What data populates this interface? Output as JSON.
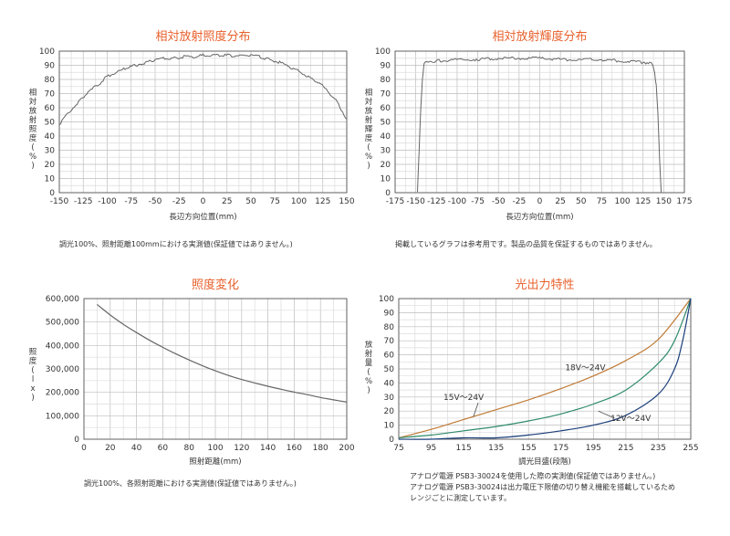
{
  "chart_data": [
    {
      "type": "line",
      "title": "相対放射照度分布",
      "xlabel": "長辺方向位置(mm)",
      "ylabel": "相対放射照度(%)",
      "xlim": [
        -150,
        150
      ],
      "ylim": [
        0,
        100
      ],
      "xticks": [
        "-150",
        "-125",
        "-100",
        "-75",
        "-50",
        "-25",
        "0",
        "25",
        "50",
        "75",
        "100",
        "125",
        "150"
      ],
      "yticks": [
        "0",
        "10",
        "20",
        "30",
        "40",
        "50",
        "60",
        "70",
        "80",
        "90",
        "100"
      ],
      "grid": true,
      "series": [
        {
          "color": "#666666",
          "x": [
            -150,
            -140,
            -130,
            -120,
            -110,
            -100,
            -90,
            -80,
            -70,
            -60,
            -50,
            -40,
            -30,
            -20,
            -10,
            0,
            10,
            20,
            30,
            40,
            50,
            60,
            70,
            80,
            90,
            100,
            110,
            120,
            130,
            140,
            150
          ],
          "y": [
            48,
            57,
            64,
            71,
            76,
            82,
            85,
            88,
            90,
            92,
            94,
            95,
            95,
            96,
            96,
            97,
            97,
            97,
            97,
            97,
            97,
            96,
            94,
            92,
            89,
            86,
            82,
            78,
            72,
            64,
            52
          ]
        }
      ],
      "note": "調光100%、照射距離100mmにおける実測値(保証値ではありません。)"
    },
    {
      "type": "line",
      "title": "相対放射輝度分布",
      "xlabel": "長辺方向位置(mm)",
      "ylabel": "相対放射輝度(%)",
      "xlim": [
        -175,
        175
      ],
      "ylim": [
        0,
        100
      ],
      "xticks": [
        "-175",
        "-150",
        "-125",
        "-100",
        "-75",
        "-50",
        "-25",
        "0",
        "25",
        "50",
        "75",
        "100",
        "125",
        "150",
        "175"
      ],
      "yticks": [
        "0",
        "10",
        "20",
        "30",
        "40",
        "50",
        "60",
        "70",
        "80",
        "90",
        "100"
      ],
      "grid": true,
      "series": [
        {
          "color": "#666666",
          "x": [
            -148,
            -146,
            -144,
            -142,
            -140,
            -135,
            -125,
            -100,
            -75,
            -50,
            -25,
            0,
            25,
            50,
            75,
            100,
            125,
            133,
            137,
            139,
            141,
            143,
            145,
            147
          ],
          "y": [
            0,
            30,
            60,
            80,
            91,
            93,
            93,
            94,
            94,
            95,
            95,
            95,
            94,
            94,
            94,
            93,
            92,
            92,
            90,
            85,
            75,
            55,
            25,
            0
          ]
        }
      ],
      "note": "掲載しているグラフは参考用です。製品の品質を保証するものではありません。"
    },
    {
      "type": "line",
      "title": "照度変化",
      "xlabel": "照射距離(mm)",
      "ylabel": "照度(lx)",
      "xlim": [
        0,
        200
      ],
      "ylim": [
        0,
        600000
      ],
      "xticks": [
        "0",
        "20",
        "40",
        "60",
        "80",
        "100",
        "120",
        "140",
        "160",
        "180",
        "200"
      ],
      "yticks": [
        "0",
        "100,000",
        "200,000",
        "300,000",
        "400,000",
        "500,000",
        "600,000"
      ],
      "grid": true,
      "series": [
        {
          "color": "#666666",
          "x": [
            10,
            20,
            30,
            40,
            50,
            60,
            70,
            80,
            90,
            100,
            110,
            120,
            130,
            140,
            150,
            160,
            170,
            180,
            190,
            200
          ],
          "y": [
            575000,
            530000,
            490000,
            455000,
            422000,
            392000,
            364000,
            338000,
            314000,
            292000,
            272000,
            255000,
            240000,
            226000,
            213000,
            201000,
            190000,
            178000,
            168000,
            158000
          ]
        }
      ],
      "note": "調光100%、各照射距離における実測値(保証値ではありません。)"
    },
    {
      "type": "line",
      "title": "光出力特性",
      "xlabel": "調光目盛(段階)",
      "ylabel": "放射量(%)",
      "xlim": [
        75,
        255
      ],
      "ylim": [
        0,
        100
      ],
      "xticks": [
        "75",
        "95",
        "115",
        "135",
        "155",
        "175",
        "195",
        "215",
        "235",
        "255"
      ],
      "yticks": [
        "0",
        "10",
        "20",
        "30",
        "40",
        "50",
        "60",
        "70",
        "80",
        "90",
        "100"
      ],
      "grid": true,
      "series": [
        {
          "name": "18V〜24V",
          "color": "#c07a35",
          "x": [
            75,
            95,
            115,
            135,
            155,
            175,
            195,
            215,
            235,
            255
          ],
          "y": [
            1,
            7,
            14,
            21,
            28,
            36,
            45,
            56,
            71,
            100
          ]
        },
        {
          "name": "15V〜24V",
          "color": "#2e8b6a",
          "x": [
            75,
            95,
            115,
            135,
            155,
            175,
            195,
            215,
            235,
            245,
            255
          ],
          "y": [
            1,
            3,
            6,
            9,
            13,
            18,
            25,
            35,
            54,
            70,
            100
          ]
        },
        {
          "name": "12V〜24V",
          "color": "#1a3e7a",
          "x": [
            75,
            95,
            115,
            135,
            155,
            175,
            195,
            215,
            235,
            245,
            250,
            255
          ],
          "y": [
            0,
            0,
            1,
            1,
            3,
            6,
            10,
            17,
            32,
            50,
            70,
            100
          ]
        }
      ],
      "labels": [
        {
          "text": "18V〜24V",
          "x": 190,
          "y": 49
        },
        {
          "text": "15V〜24V",
          "x": 115,
          "y": 28
        },
        {
          "text": "12V〜24V",
          "x": 218,
          "y": 13
        }
      ],
      "notes": [
        "アナログ電源 PSB3-30024を使用した際の実測値(保証値ではありません。)",
        "アナログ電源 PSB3-30024は出力電圧下限値の切り替え機能を搭載しているため",
        "レンジごとに測定しています。"
      ]
    }
  ]
}
